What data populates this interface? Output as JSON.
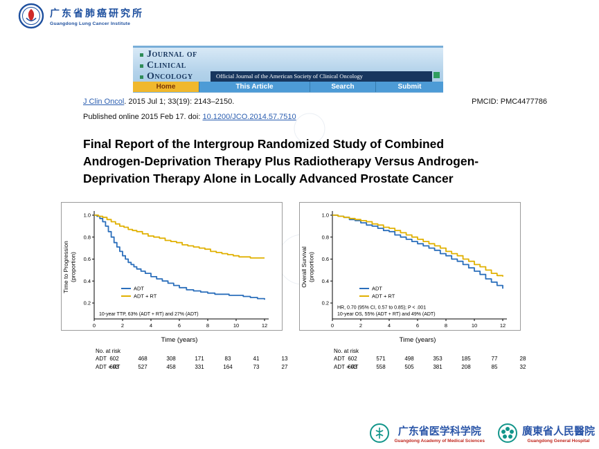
{
  "institute_logo": {
    "cn": "广东省肺癌研究所",
    "en": "Guangdong Lung Cancer Institute"
  },
  "journal_banner": {
    "name_lines": [
      "Journal of",
      "Clinical",
      "Oncology"
    ],
    "tagline": "Official Journal of the American Society of Clinical Oncology",
    "nav": [
      {
        "label": "Home"
      },
      {
        "label": "This Article"
      },
      {
        "label": "Search"
      },
      {
        "label": "Submit"
      }
    ],
    "colors": {
      "navy": "#17365e",
      "light_blue": "#b3d2ea",
      "nav_blue": "#4d9bd6",
      "home_yellow": "#f0b82d",
      "green": "#2e8b57"
    }
  },
  "citation": {
    "line1_link": "J Clin Oncol",
    "line1_rest": ". 2015 Jul 1; 33(19): 2143–2150.",
    "pmcid": "PMCID: PMC4477786",
    "line2_prefix": "Published online 2015 Feb 17. doi: ",
    "line2_link": "10.1200/JCO.2014.57.7510"
  },
  "title_lines": [
    "Final Report of the Intergroup Randomized Study of Combined",
    "Androgen-Deprivation Therapy Plus Radiotherapy Versus Androgen-",
    "Deprivation Therapy Alone in Locally Advanced Prostate Cancer"
  ],
  "chart_data": [
    {
      "type": "line",
      "subtype": "kaplan-meier-step",
      "ylabel_lines": [
        "Time to Progression",
        "(proportion)"
      ],
      "xlabel": "Time (years)",
      "xlim": [
        0,
        12
      ],
      "ylim": [
        0.055,
        1.0
      ],
      "xticks": [
        0,
        2,
        4,
        6,
        8,
        10,
        12
      ],
      "yticks": [
        0.2,
        0.4,
        0.6,
        0.8,
        1.0
      ],
      "grid": false,
      "legend_position": "inside-lower-left",
      "series": [
        {
          "name": "ADT",
          "color": "#2a6ebb",
          "points": [
            [
              0,
              1.0
            ],
            [
              0.2,
              0.99
            ],
            [
              0.4,
              0.97
            ],
            [
              0.6,
              0.94
            ],
            [
              0.8,
              0.9
            ],
            [
              1.0,
              0.85
            ],
            [
              1.2,
              0.8
            ],
            [
              1.4,
              0.75
            ],
            [
              1.6,
              0.71
            ],
            [
              1.8,
              0.67
            ],
            [
              2.0,
              0.63
            ],
            [
              2.2,
              0.6
            ],
            [
              2.4,
              0.57
            ],
            [
              2.6,
              0.55
            ],
            [
              2.8,
              0.53
            ],
            [
              3.0,
              0.51
            ],
            [
              3.3,
              0.49
            ],
            [
              3.6,
              0.47
            ],
            [
              4.0,
              0.44
            ],
            [
              4.4,
              0.42
            ],
            [
              4.8,
              0.4
            ],
            [
              5.2,
              0.38
            ],
            [
              5.6,
              0.36
            ],
            [
              6.0,
              0.34
            ],
            [
              6.5,
              0.32
            ],
            [
              7.0,
              0.31
            ],
            [
              7.5,
              0.3
            ],
            [
              8.0,
              0.29
            ],
            [
              8.5,
              0.28
            ],
            [
              9.5,
              0.27
            ],
            [
              10.0,
              0.27
            ],
            [
              10.5,
              0.26
            ],
            [
              11.0,
              0.25
            ],
            [
              11.5,
              0.24
            ],
            [
              12.0,
              0.23
            ]
          ]
        },
        {
          "name": "ADT + RT",
          "color": "#e0b000",
          "points": [
            [
              0,
              1.0
            ],
            [
              0.3,
              0.99
            ],
            [
              0.6,
              0.98
            ],
            [
              0.9,
              0.96
            ],
            [
              1.2,
              0.94
            ],
            [
              1.5,
              0.92
            ],
            [
              1.8,
              0.9
            ],
            [
              2.1,
              0.89
            ],
            [
              2.4,
              0.87
            ],
            [
              2.7,
              0.86
            ],
            [
              3.0,
              0.85
            ],
            [
              3.4,
              0.83
            ],
            [
              3.8,
              0.81
            ],
            [
              4.2,
              0.8
            ],
            [
              4.6,
              0.79
            ],
            [
              5.0,
              0.77
            ],
            [
              5.4,
              0.76
            ],
            [
              5.8,
              0.75
            ],
            [
              6.2,
              0.73
            ],
            [
              6.6,
              0.72
            ],
            [
              7.0,
              0.71
            ],
            [
              7.4,
              0.7
            ],
            [
              7.8,
              0.69
            ],
            [
              8.2,
              0.67
            ],
            [
              8.6,
              0.66
            ],
            [
              9.0,
              0.65
            ],
            [
              9.4,
              0.64
            ],
            [
              9.8,
              0.63
            ],
            [
              10.2,
              0.62
            ],
            [
              11.0,
              0.61
            ],
            [
              12.0,
              0.61
            ]
          ]
        }
      ],
      "annotations": [
        "10-year TTP, 63% (ADT + RT) and 27% (ADT)"
      ],
      "risk_table": {
        "title": "No. at risk",
        "rows": [
          {
            "name": "ADT",
            "values": [
              602,
              468,
              308,
              171,
              83,
              41,
              13
            ]
          },
          {
            "name": "ADT + RT",
            "values": [
              603,
              527,
              458,
              331,
              164,
              73,
              27
            ]
          }
        ]
      }
    },
    {
      "type": "line",
      "subtype": "kaplan-meier-step",
      "ylabel_lines": [
        "Overall Survival",
        "(proportion)"
      ],
      "xlabel": "Time (years)",
      "xlim": [
        0,
        12
      ],
      "ylim": [
        0.055,
        1.0
      ],
      "xticks": [
        0,
        2,
        4,
        6,
        8,
        10,
        12
      ],
      "yticks": [
        0.2,
        0.4,
        0.6,
        0.8,
        1.0
      ],
      "grid": false,
      "legend_position": "inside-lower-left",
      "series": [
        {
          "name": "ADT",
          "color": "#2a6ebb",
          "points": [
            [
              0,
              1.0
            ],
            [
              0.4,
              0.99
            ],
            [
              0.8,
              0.98
            ],
            [
              1.2,
              0.96
            ],
            [
              1.6,
              0.95
            ],
            [
              2.0,
              0.93
            ],
            [
              2.4,
              0.91
            ],
            [
              2.8,
              0.9
            ],
            [
              3.2,
              0.88
            ],
            [
              3.6,
              0.86
            ],
            [
              4.0,
              0.85
            ],
            [
              4.4,
              0.82
            ],
            [
              4.8,
              0.8
            ],
            [
              5.2,
              0.78
            ],
            [
              5.6,
              0.76
            ],
            [
              6.0,
              0.74
            ],
            [
              6.4,
              0.72
            ],
            [
              6.8,
              0.7
            ],
            [
              7.2,
              0.68
            ],
            [
              7.6,
              0.65
            ],
            [
              8.0,
              0.63
            ],
            [
              8.4,
              0.6
            ],
            [
              8.8,
              0.58
            ],
            [
              9.2,
              0.55
            ],
            [
              9.6,
              0.52
            ],
            [
              10.0,
              0.49
            ],
            [
              10.4,
              0.46
            ],
            [
              10.8,
              0.42
            ],
            [
              11.2,
              0.39
            ],
            [
              11.6,
              0.36
            ],
            [
              12.0,
              0.33
            ]
          ]
        },
        {
          "name": "ADT + RT",
          "color": "#e0b000",
          "points": [
            [
              0,
              1.0
            ],
            [
              0.4,
              0.99
            ],
            [
              0.8,
              0.98
            ],
            [
              1.2,
              0.97
            ],
            [
              1.6,
              0.96
            ],
            [
              2.0,
              0.95
            ],
            [
              2.4,
              0.94
            ],
            [
              2.8,
              0.92
            ],
            [
              3.2,
              0.91
            ],
            [
              3.6,
              0.89
            ],
            [
              4.0,
              0.88
            ],
            [
              4.4,
              0.86
            ],
            [
              4.8,
              0.84
            ],
            [
              5.2,
              0.82
            ],
            [
              5.6,
              0.8
            ],
            [
              6.0,
              0.78
            ],
            [
              6.4,
              0.76
            ],
            [
              6.8,
              0.74
            ],
            [
              7.2,
              0.72
            ],
            [
              7.6,
              0.7
            ],
            [
              8.0,
              0.67
            ],
            [
              8.4,
              0.65
            ],
            [
              8.8,
              0.63
            ],
            [
              9.2,
              0.6
            ],
            [
              9.6,
              0.58
            ],
            [
              10.0,
              0.55
            ],
            [
              10.4,
              0.53
            ],
            [
              10.8,
              0.5
            ],
            [
              11.2,
              0.47
            ],
            [
              11.6,
              0.45
            ],
            [
              12.0,
              0.44
            ]
          ]
        }
      ],
      "annotations": [
        "HR, 0.70 (95% CI, 0.57 to 0.85); P < .001",
        "10-year OS, 55% (ADT + RT) and 49% (ADT)"
      ],
      "risk_table": {
        "title": "No. at risk",
        "rows": [
          {
            "name": "ADT",
            "values": [
              602,
              571,
              498,
              353,
              185,
              77,
              28
            ]
          },
          {
            "name": "ADT + RT",
            "values": [
              603,
              558,
              505,
              381,
              208,
              85,
              32
            ]
          }
        ]
      }
    }
  ],
  "footer": {
    "academy": {
      "cn": "广东省医学科学院",
      "en": "Guangdong Academy of Medical Sciences"
    },
    "hospital": {
      "cn": "廣東省人民醫院",
      "en": "Guangdong General Hospital"
    }
  }
}
